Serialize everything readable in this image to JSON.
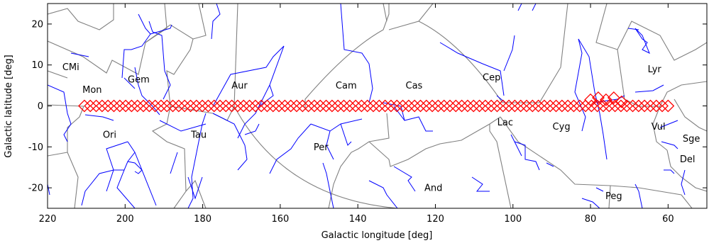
{
  "chart_data": {
    "type": "scatter",
    "xlabel": "Galactic longitude [deg]",
    "ylabel": "Galactic latitude [deg]",
    "xlim": [
      220,
      50
    ],
    "ylim": [
      -25,
      25
    ],
    "x_ticks": [
      "220",
      "200",
      "180",
      "160",
      "140",
      "120",
      "100",
      "80",
      "60"
    ],
    "y_ticks": [
      "20",
      "10",
      "0",
      "-10",
      "-20"
    ],
    "x_tick_values": [
      220,
      200,
      180,
      160,
      140,
      120,
      100,
      80,
      60
    ],
    "y_tick_values": [
      20,
      10,
      0,
      -10,
      -20
    ],
    "constellations": [
      {
        "name": "CMi",
        "l": 214,
        "b": 9.5
      },
      {
        "name": "Mon",
        "l": 208.5,
        "b": 4
      },
      {
        "name": "Gem",
        "l": 196.5,
        "b": 6.5
      },
      {
        "name": "Ori",
        "l": 204,
        "b": -7
      },
      {
        "name": "Tau",
        "l": 181,
        "b": -7
      },
      {
        "name": "Aur",
        "l": 170.5,
        "b": 5
      },
      {
        "name": "Cam",
        "l": 143,
        "b": 5
      },
      {
        "name": "Cas",
        "l": 125.5,
        "b": 5
      },
      {
        "name": "Per",
        "l": 149.5,
        "b": -10
      },
      {
        "name": "Cep",
        "l": 105.5,
        "b": 7
      },
      {
        "name": "Lac",
        "l": 102,
        "b": -4
      },
      {
        "name": "Cyg",
        "l": 87.5,
        "b": -5
      },
      {
        "name": "And",
        "l": 120.5,
        "b": -20
      },
      {
        "name": "Peg",
        "l": 74,
        "b": -22
      },
      {
        "name": "Lyr",
        "l": 63.5,
        "b": 9
      },
      {
        "name": "Vul",
        "l": 62.5,
        "b": -5
      },
      {
        "name": "Sge",
        "l": 54,
        "b": -8
      },
      {
        "name": "Del",
        "l": 55,
        "b": -13
      }
    ],
    "survey_fields": {
      "marker": "diamond",
      "color": "#ff0000",
      "l_start": 210.5,
      "l_end": 60,
      "count": 100,
      "b": 0,
      "extra_fields": [
        {
          "l": 80,
          "b": 1.5
        },
        {
          "l": 78,
          "b": 2
        },
        {
          "l": 76,
          "b": 1.5
        },
        {
          "l": 74,
          "b": 2
        },
        {
          "l": 72,
          "b": 1
        }
      ]
    },
    "stick_figure_color": "#0000ff",
    "boundary_color": "#808080",
    "grid": false
  }
}
